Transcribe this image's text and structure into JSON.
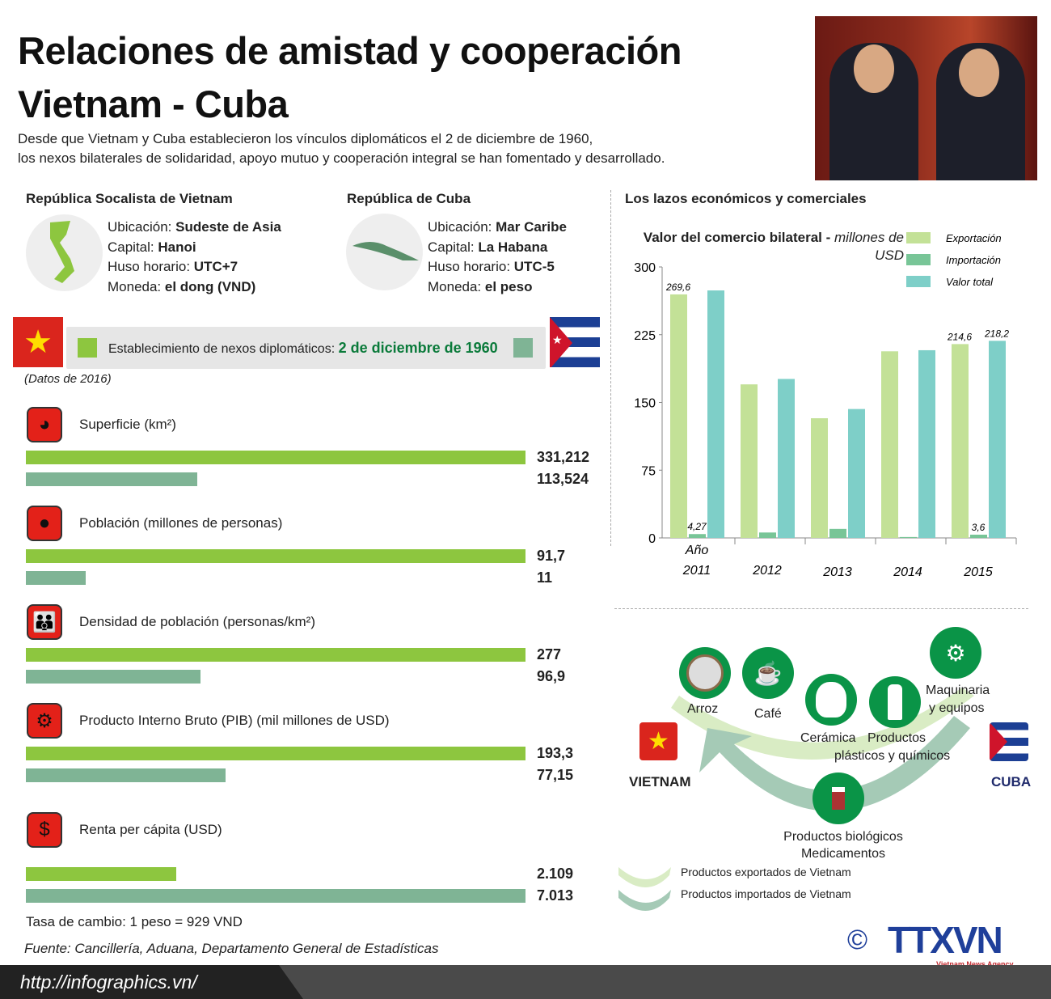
{
  "title_line1": "Relaciones de amistad y cooperación",
  "title_line2": "Vietnam - Cuba",
  "intro_line1": "Desde que Vietnam y Cuba establecieron los vínculos diplomáticos el 2 de diciembre de 1960,",
  "intro_line2": "los nexos bilaterales de solidaridad, apoyo mutuo y cooperación integral se han fomentado y desarrollado.",
  "vietnam": {
    "name": "República Socalista de Vietnam",
    "ubicacion_label": "Ubicación: ",
    "ubicacion": "Sudeste de Asia",
    "capital_label": "Capital: ",
    "capital": "Hanoi",
    "huso_label": "Huso horario: ",
    "huso": "UTC+7",
    "moneda_label": "Moneda: ",
    "moneda": "el dong (VND)"
  },
  "cuba": {
    "name": "República de Cuba",
    "ubicacion_label": "Ubicación: ",
    "ubicacion": "Mar Caribe",
    "capital_label": "Capital: ",
    "capital": "La Habana",
    "huso_label": "Huso horario: ",
    "huso": "UTC-5",
    "moneda_label": "Moneda: ",
    "moneda": "el peso"
  },
  "diplomatic": {
    "label": "Establecimiento de nexos diplomáticos: ",
    "date": "2 de diciembre de 1960"
  },
  "data_year": "(Datos de 2016)",
  "stats": [
    {
      "label": "Superficie (km²)",
      "icon": "pie-chart-icon",
      "vietnam": "331,212",
      "cuba": "113,524",
      "vn_num": 331212,
      "cu_num": 113524
    },
    {
      "label": "Población (millones de personas)",
      "icon": "person-icon",
      "vietnam": "91,7",
      "cuba": "11",
      "vn_num": 91.7,
      "cu_num": 11
    },
    {
      "label": "Densidad de población (personas/km²)",
      "icon": "people-group-icon",
      "vietnam": "277",
      "cuba": "96,9",
      "vn_num": 277,
      "cu_num": 96.9
    },
    {
      "label": "Producto Interno Bruto (PIB) (mil millones de USD)",
      "icon": "gears-icon",
      "vietnam": "193,3",
      "cuba": "77,15",
      "vn_num": 193.3,
      "cu_num": 77.15
    },
    {
      "label": "Renta per cápita (USD)",
      "icon": "gdp-icon",
      "vietnam": "2.109",
      "cuba": "7.013",
      "vn_num": 2109,
      "cu_num": 7013
    }
  ],
  "exchange_rate": "Tasa de cambio: 1 peso = 929 VND",
  "source": "Fuente: Cancillería, Aduana, Departamento General de Estadísticas",
  "url": "http://infographics.vn/",
  "econ_title": "Los lazos económicos y comerciales",
  "colors": {
    "vietnam_bar": "#8dc63f",
    "cuba_bar": "#7fb495",
    "export": "#c3e197",
    "import": "#78c597",
    "total": "#7ecfc8",
    "product_green": "#0a9447"
  },
  "chart_data": {
    "type": "bar",
    "title": "Valor del comercio bilateral - ",
    "title_unit": "millones de USD",
    "xlabel": "Año",
    "categories": [
      "2011",
      "2012",
      "2013",
      "2014",
      "2015"
    ],
    "ylim": [
      0,
      300
    ],
    "yticks": [
      "0",
      "75",
      "150",
      "225",
      "300"
    ],
    "legend_position": "top-right",
    "series": [
      {
        "name": "Exportación",
        "values": [
          269.6,
          170,
          132.5,
          206.6,
          214.6
        ]
      },
      {
        "name": "Importación",
        "values": [
          4.27,
          6,
          10,
          1,
          3.6
        ]
      },
      {
        "name": "Valor total",
        "values": [
          274,
          176,
          142.7,
          207.8,
          218.2
        ]
      }
    ],
    "data_labels": {
      "2011": [
        "269,6",
        "4,27",
        ""
      ],
      "2015": [
        "214,6",
        "3,6",
        "218,2"
      ]
    }
  },
  "trade": {
    "vietnam": "VIETNAM",
    "cuba": "CUBA",
    "exports": [
      "Arroz",
      "Café",
      "Cerámica",
      "Productos",
      "plásticos y químicos",
      "Maquinaria",
      "y equipos"
    ],
    "imports": [
      "Productos biológicos",
      "Medicamentos"
    ],
    "legend_export": "Productos exportados de Vietnam",
    "legend_import": "Productos importados de Vietnam"
  },
  "logo": {
    "copyright": "©",
    "name": "TTXVN",
    "sub": "Vietnam News Agency"
  }
}
